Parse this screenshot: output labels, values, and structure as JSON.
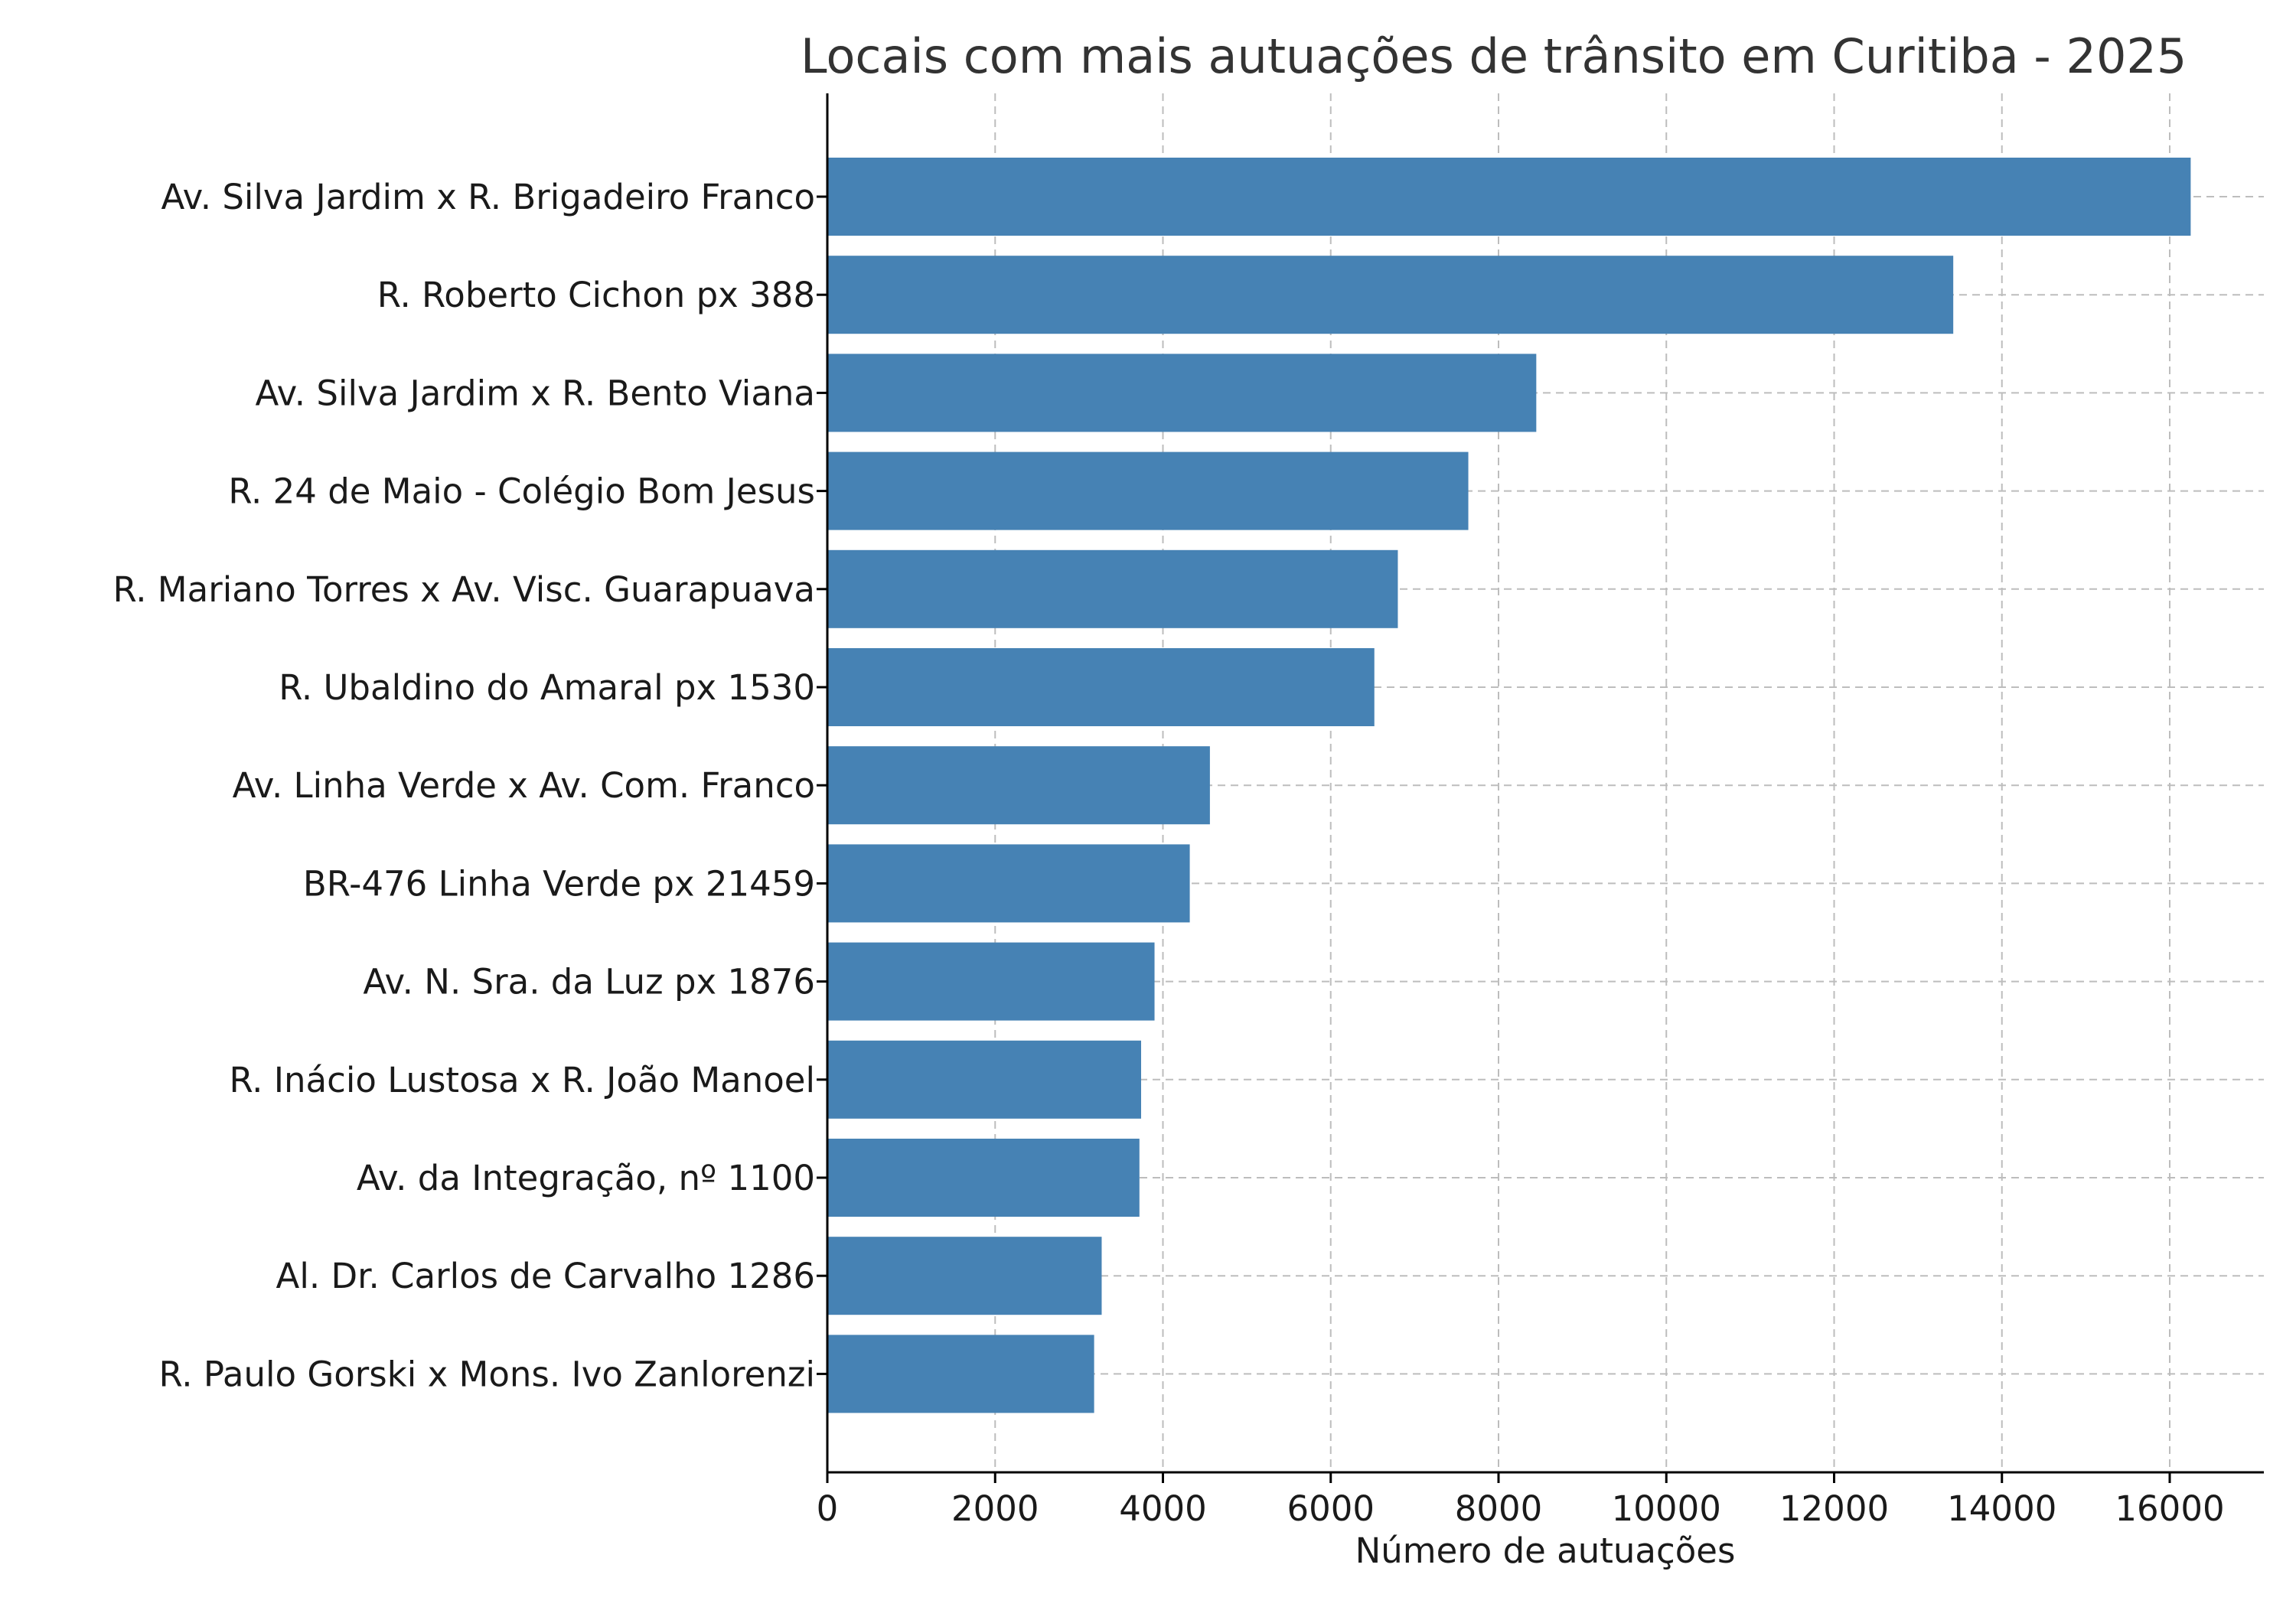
{
  "chart_data": {
    "type": "bar",
    "orientation": "horizontal",
    "title": "Locais com mais autuações de trânsito em Curitiba - 2025",
    "xlabel": "Número de autuações",
    "ylabel": "",
    "xlim": [
      0,
      17000
    ],
    "xticks": [
      0,
      2000,
      4000,
      6000,
      8000,
      10000,
      12000,
      14000,
      16000
    ],
    "grid": true,
    "bar_color": "#4682B4",
    "categories": [
      "Av. Silva Jardim x R. Brigadeiro Franco",
      "R. Roberto Cichon px 388",
      "Av. Silva Jardim x R. Bento Viana",
      "R. 24 de Maio - Colégio Bom Jesus",
      "R. Mariano Torres x Av. Visc. Guarapuava",
      "R. Ubaldino do Amaral px 1530",
      "Av. Linha Verde x Av. Com. Franco",
      "BR-476 Linha Verde px 21459",
      "Av. N. Sra. da Luz px 1876",
      "R. Inácio Lustosa x R. João Manoel",
      "Av. da Integração, nº 1100",
      "Al. Dr. Carlos de Carvalho 1286",
      "R. Paulo Gorski x Mons. Ivo Zanlorenzi"
    ],
    "values": [
      16250,
      13420,
      8450,
      7640,
      6800,
      6520,
      4560,
      4320,
      3900,
      3740,
      3720,
      3270,
      3180
    ]
  }
}
